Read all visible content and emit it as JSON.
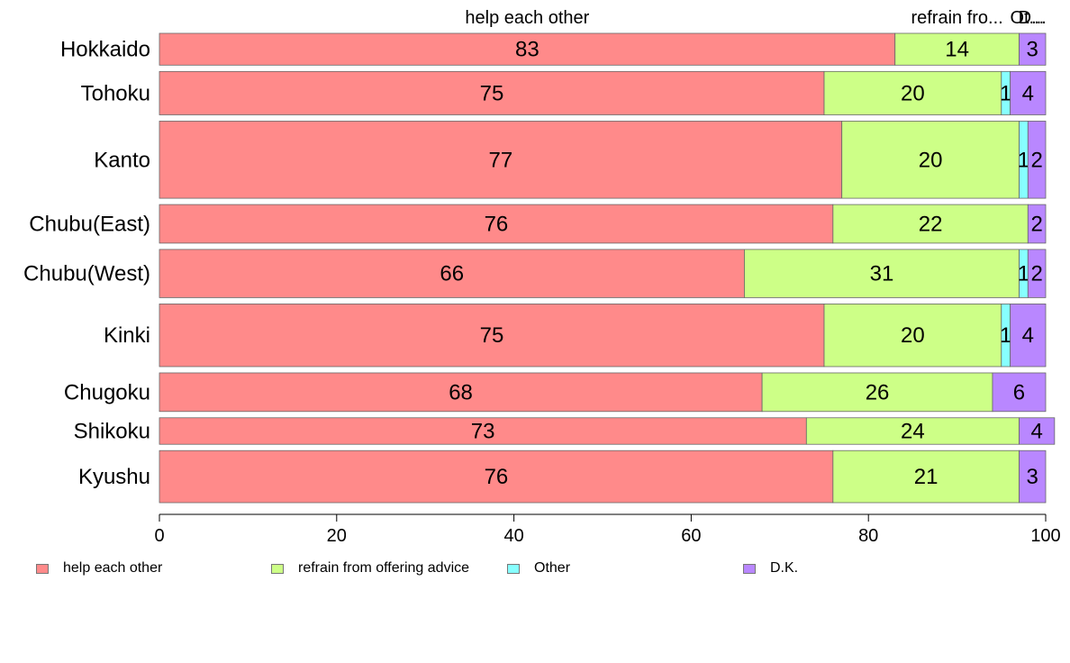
{
  "chart_data": {
    "type": "bar",
    "orientation": "horizontal",
    "stacked": true,
    "categories": [
      "Hokkaido",
      "Tohoku",
      "Kanto",
      "Chubu(East)",
      "Chubu(West)",
      "Kinki",
      "Chugoku",
      "Shikoku",
      "Kyushu"
    ],
    "series": [
      {
        "name": "help each other",
        "color": "#ff8a8a",
        "values": [
          83,
          75,
          77,
          76,
          66,
          75,
          68,
          73,
          76
        ]
      },
      {
        "name": "refrain from offering advice",
        "color": "#cdff87",
        "values": [
          14,
          20,
          20,
          22,
          31,
          20,
          26,
          24,
          21
        ]
      },
      {
        "name": "Other",
        "color": "#87ffff",
        "values": [
          0,
          1,
          1,
          0,
          1,
          1,
          0,
          0,
          0
        ]
      },
      {
        "name": "D.K.",
        "color": "#b987ff",
        "values": [
          3,
          4,
          2,
          2,
          2,
          4,
          6,
          4,
          3
        ]
      }
    ],
    "bar_relative_widths": [
      0.66,
      0.9,
      1.6,
      0.8,
      1.0,
      1.3,
      0.8,
      0.55,
      1.08
    ],
    "top_labels": [
      "help each other",
      "refrain fro...",
      "Ot...",
      "D..."
    ],
    "xlim": [
      0,
      100
    ],
    "xticks": [
      0,
      20,
      40,
      60,
      80,
      100
    ],
    "grid": false,
    "legend_position": "bottom"
  }
}
